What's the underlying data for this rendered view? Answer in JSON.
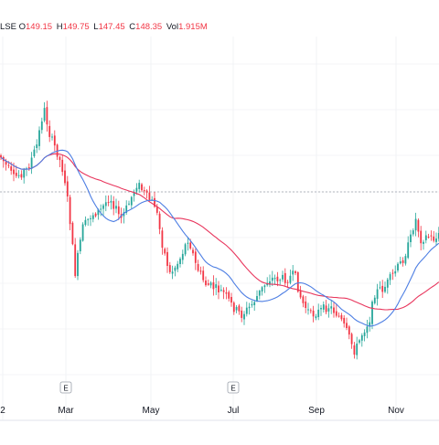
{
  "legend": {
    "symbol_suffix": "LSE",
    "open_label": "O",
    "open": "149.15",
    "high_label": "H",
    "high": "149.75",
    "low_label": "L",
    "low": "147.45",
    "close_label": "C",
    "close": "148.35",
    "vol_label": "Vol",
    "vol": "1.915M"
  },
  "colors": {
    "up": "#26a69a",
    "down": "#f23645",
    "ma_fast": "#4d7ee3",
    "ma_slow": "#e8365d",
    "grid": "#e9ebf0",
    "axis_text": "#131722",
    "price_line": "#9aa0aa"
  },
  "chart_data": {
    "type": "candlestick",
    "x_axis": {
      "ticks": [
        "2",
        "Mar",
        "May",
        "Jul",
        "Sep",
        "Nov"
      ]
    },
    "event_markers": [
      {
        "label": "E",
        "month": "Mar"
      },
      {
        "label": "E",
        "month": "Jul"
      }
    ],
    "series": [
      {
        "type": "moving-average",
        "color": "#4d7ee3"
      },
      {
        "type": "moving-average",
        "color": "#e8365d"
      }
    ],
    "grid": true,
    "horizontal_price_line": true
  }
}
